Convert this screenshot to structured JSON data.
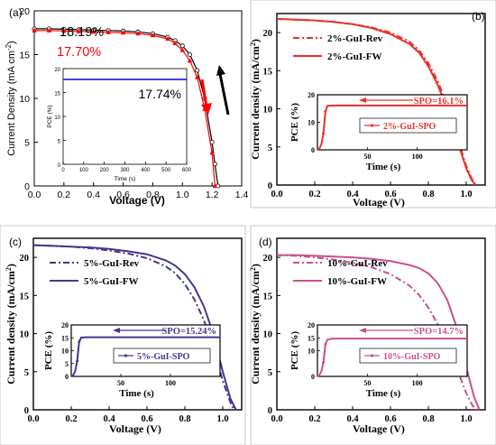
{
  "chart_data": [
    {
      "type": "line",
      "panel_label": "(a)",
      "xlabel": "Voltage (V)",
      "ylabel": "Current Density (mA cm",
      "ylabel_sup": "-2",
      "ylabel_close": ")",
      "xlim": [
        0,
        1.4
      ],
      "ylim": [
        0,
        20
      ],
      "x_ticks": [
        "0.0",
        "0.2",
        "0.4",
        "0.6",
        "0.8",
        "1.0",
        "1.2",
        "1.4"
      ],
      "y_ticks": [
        "0",
        "5",
        "10",
        "15",
        "20"
      ],
      "annotations": [
        "18.19%",
        "17.70%"
      ],
      "series": [
        {
          "color": "#000000",
          "marker": "circle",
          "x": [
            0,
            0.1,
            0.2,
            0.3,
            0.4,
            0.5,
            0.6,
            0.7,
            0.8,
            0.9,
            0.95,
            1.0,
            1.05,
            1.1,
            1.15,
            1.2,
            1.22,
            1.24
          ],
          "y": [
            17.95,
            17.95,
            17.9,
            17.85,
            17.8,
            17.75,
            17.7,
            17.6,
            17.4,
            17.0,
            16.6,
            16.0,
            15.0,
            13.2,
            10.0,
            5.0,
            2.5,
            0
          ]
        },
        {
          "color": "#ff0000",
          "marker": "triangle",
          "x": [
            0,
            0.1,
            0.2,
            0.3,
            0.4,
            0.5,
            0.6,
            0.7,
            0.8,
            0.9,
            0.95,
            1.0,
            1.05,
            1.1,
            1.15,
            1.2,
            1.22
          ],
          "y": [
            17.75,
            17.75,
            17.7,
            17.65,
            17.6,
            17.55,
            17.5,
            17.4,
            17.2,
            16.8,
            16.3,
            15.5,
            14.3,
            12.4,
            8.8,
            3.8,
            0
          ]
        }
      ],
      "inset": {
        "xlabel": "Time (s)",
        "ylabel": "PCE (%)",
        "xlim": [
          0,
          600
        ],
        "ylim": [
          0,
          20
        ],
        "x_ticks": [
          "0",
          "100",
          "200",
          "300",
          "400",
          "500",
          "600"
        ],
        "y_ticks": [
          "0",
          "5",
          "10",
          "15",
          "20"
        ],
        "annotation": "17.74%",
        "series": [
          {
            "color": "#0000ff",
            "x": [
              0,
              600
            ],
            "y": [
              17.74,
              17.74
            ]
          }
        ]
      }
    },
    {
      "type": "line",
      "panel_label": "(b)",
      "xlabel": "Voltage (V)",
      "ylabel": "Current density (mA/cm",
      "ylabel_sup": "2",
      "ylabel_close": ")",
      "xlim": [
        0,
        1.1
      ],
      "ylim": [
        0,
        22.5
      ],
      "x_ticks": [
        "0.0",
        "0.2",
        "0.4",
        "0.6",
        "0.8",
        "1.0"
      ],
      "y_ticks": [
        "0",
        "5",
        "10",
        "15",
        "20"
      ],
      "series": [
        {
          "name": "2%-GuI-Rev",
          "color": "#e8322c",
          "dash": "dashdot",
          "x": [
            0,
            0.1,
            0.2,
            0.3,
            0.4,
            0.5,
            0.6,
            0.7,
            0.75,
            0.8,
            0.85,
            0.9,
            0.95,
            1.0,
            1.03,
            1.05
          ],
          "y": [
            21.8,
            21.7,
            21.6,
            21.4,
            21.1,
            20.7,
            20.0,
            18.8,
            17.7,
            16.0,
            13.6,
            10.4,
            6.5,
            2.5,
            0.8,
            0
          ]
        },
        {
          "name": "2%-GuI-FW",
          "color": "#e8322c",
          "dash": "solid",
          "x": [
            0,
            0.1,
            0.2,
            0.3,
            0.4,
            0.5,
            0.6,
            0.7,
            0.75,
            0.8,
            0.85,
            0.9,
            0.95,
            1.0,
            1.03,
            1.05
          ],
          "y": [
            21.8,
            21.7,
            21.6,
            21.4,
            21.1,
            20.6,
            19.8,
            18.5,
            17.4,
            15.6,
            13.1,
            9.9,
            6.0,
            2.2,
            0.6,
            0
          ]
        }
      ],
      "inset": {
        "xlabel": "Time (s)",
        "ylabel": "PCE (%)",
        "xlim": [
          0,
          150
        ],
        "ylim": [
          0,
          20
        ],
        "x_ticks": [
          "50",
          "100"
        ],
        "y_ticks": [
          "0",
          "10",
          "20"
        ],
        "annotation": "SPO=16.1%",
        "legend": "2%-GuI-SPO",
        "series": [
          {
            "color": "#e8322c",
            "x": [
              0,
              2,
              4,
              6,
              8,
              10,
              15,
              150
            ],
            "y": [
              0,
              0.5,
              2,
              6,
              14,
              16,
              16.1,
              16.1
            ]
          }
        ]
      }
    },
    {
      "type": "line",
      "panel_label": "(c)",
      "xlabel": "Voltage (V)",
      "ylabel": "Current density (mA/cm",
      "ylabel_sup": "2",
      "ylabel_close": ")",
      "xlim": [
        0,
        1.1
      ],
      "ylim": [
        0,
        22.5
      ],
      "x_ticks": [
        "0.0",
        "0.2",
        "0.4",
        "0.6",
        "0.8",
        "1.0"
      ],
      "y_ticks": [
        "0",
        "5",
        "10",
        "15",
        "20"
      ],
      "series": [
        {
          "name": "5%-GuI-Rev",
          "color": "#3d3a8c",
          "dash": "dashdot",
          "x": [
            0,
            0.1,
            0.2,
            0.3,
            0.4,
            0.5,
            0.6,
            0.7,
            0.75,
            0.8,
            0.85,
            0.9,
            0.95,
            1.0,
            1.04,
            1.06
          ],
          "y": [
            21.6,
            21.5,
            21.4,
            21.2,
            20.9,
            20.5,
            19.9,
            18.8,
            17.9,
            16.5,
            14.5,
            11.8,
            8.2,
            3.8,
            1.0,
            0
          ]
        },
        {
          "name": "5%-GuI-FW",
          "color": "#3d3a8c",
          "dash": "solid",
          "x": [
            0,
            0.1,
            0.2,
            0.3,
            0.4,
            0.5,
            0.6,
            0.7,
            0.75,
            0.8,
            0.85,
            0.9,
            0.95,
            1.0,
            1.04,
            1.07
          ],
          "y": [
            21.6,
            21.5,
            21.4,
            21.3,
            21.1,
            20.8,
            20.4,
            19.6,
            18.9,
            17.8,
            16.1,
            13.6,
            10.0,
            5.0,
            1.5,
            0
          ]
        }
      ],
      "inset": {
        "xlabel": "Time (s)",
        "ylabel": "PCE (%)",
        "xlim": [
          0,
          150
        ],
        "ylim": [
          0,
          20
        ],
        "x_ticks": [
          "50",
          "100"
        ],
        "y_ticks": [
          "0",
          "5",
          "10",
          "15",
          "20"
        ],
        "annotation": "SPO=15.24%",
        "legend": "5%-GuI-SPO",
        "series": [
          {
            "color": "#3d3a8c",
            "x": [
              0,
              2,
              4,
              6,
              8,
              10,
              15,
              150
            ],
            "y": [
              0,
              0.5,
              2,
              6,
              13.5,
              15.1,
              15.24,
              15.24
            ]
          }
        ]
      }
    },
    {
      "type": "line",
      "panel_label": "(d)",
      "xlabel": "Voltage (V)",
      "ylabel": "Current density (mA/cm",
      "ylabel_sup": "2",
      "ylabel_close": ")",
      "xlim": [
        0,
        1.1
      ],
      "ylim": [
        0,
        22.5
      ],
      "x_ticks": [
        "0.0",
        "0.2",
        "0.4",
        "0.6",
        "0.8",
        "1.0"
      ],
      "y_ticks": [
        "0",
        "5",
        "10",
        "15",
        "20"
      ],
      "series": [
        {
          "name": "10%-GuI-Rev",
          "color": "#c8508a",
          "dash": "dashdot",
          "x": [
            0,
            0.1,
            0.2,
            0.3,
            0.4,
            0.5,
            0.6,
            0.7,
            0.75,
            0.8,
            0.85,
            0.9,
            0.95,
            1.0,
            1.03,
            1.05
          ],
          "y": [
            20.3,
            20.2,
            20.0,
            19.7,
            19.3,
            18.7,
            17.8,
            16.3,
            15.1,
            13.4,
            11.2,
            8.5,
            5.4,
            2.2,
            0.7,
            0
          ]
        },
        {
          "name": "10%-GuI-FW",
          "color": "#c8508a",
          "dash": "solid",
          "x": [
            0,
            0.1,
            0.2,
            0.3,
            0.4,
            0.5,
            0.6,
            0.7,
            0.75,
            0.8,
            0.85,
            0.9,
            0.95,
            1.0,
            1.04,
            1.07
          ],
          "y": [
            20.3,
            20.3,
            20.2,
            20.1,
            20.0,
            19.8,
            19.5,
            19.0,
            18.6,
            17.9,
            16.6,
            14.4,
            10.8,
            5.6,
            1.8,
            0
          ]
        }
      ],
      "inset": {
        "xlabel": "Time (s)",
        "ylabel": "PCE (%)",
        "xlim": [
          0,
          150
        ],
        "ylim": [
          0,
          20
        ],
        "x_ticks": [
          "50",
          "100"
        ],
        "y_ticks": [
          "0",
          "10",
          "15",
          "20"
        ],
        "annotation": "SPO=14.7%",
        "legend": "10%-GuI-SPO",
        "series": [
          {
            "color": "#c8508a",
            "x": [
              0,
              2,
              4,
              6,
              8,
              10,
              15,
              150
            ],
            "y": [
              0,
              0.5,
              2,
              5.5,
              12.5,
              14.3,
              14.7,
              14.7
            ]
          }
        ]
      }
    }
  ]
}
